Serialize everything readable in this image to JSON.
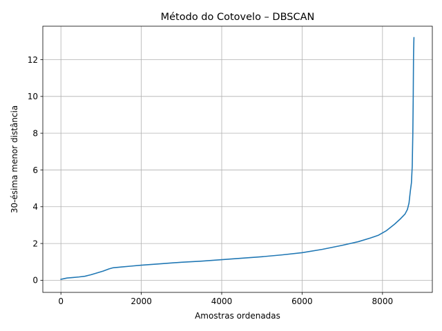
{
  "chart_data": {
    "type": "line",
    "title": "Método do Cotovelo – DBSCAN",
    "xlabel": "Amostras ordenadas",
    "ylabel": "30-ésima menor distância",
    "xlim": [
      -450,
      9240
    ],
    "ylim": [
      -0.66,
      13.82
    ],
    "xticks": [
      0,
      2000,
      4000,
      6000,
      8000
    ],
    "yticks": [
      0,
      2,
      4,
      6,
      8,
      10,
      12
    ],
    "grid": true,
    "legend": "none",
    "series": [
      {
        "color": "#1f77b4",
        "x": [
          0,
          150,
          300,
          450,
          600,
          750,
          900,
          1050,
          1200,
          1300,
          1500,
          1750,
          2000,
          2500,
          3000,
          3500,
          4000,
          4500,
          5000,
          5500,
          6000,
          6500,
          7000,
          7400,
          7700,
          7900,
          8100,
          8300,
          8450,
          8560,
          8620,
          8660,
          8690,
          8720,
          8740,
          8755,
          8765,
          8772,
          8776,
          8780,
          8783
        ],
        "y": [
          0.05,
          0.12,
          0.15,
          0.18,
          0.22,
          0.3,
          0.4,
          0.5,
          0.62,
          0.68,
          0.72,
          0.77,
          0.82,
          0.9,
          0.98,
          1.04,
          1.12,
          1.2,
          1.28,
          1.38,
          1.5,
          1.68,
          1.9,
          2.1,
          2.3,
          2.45,
          2.7,
          3.05,
          3.35,
          3.6,
          3.85,
          4.2,
          4.8,
          5.3,
          6.2,
          8.0,
          10.0,
          12.1,
          12.6,
          13.0,
          13.2
        ]
      }
    ]
  }
}
